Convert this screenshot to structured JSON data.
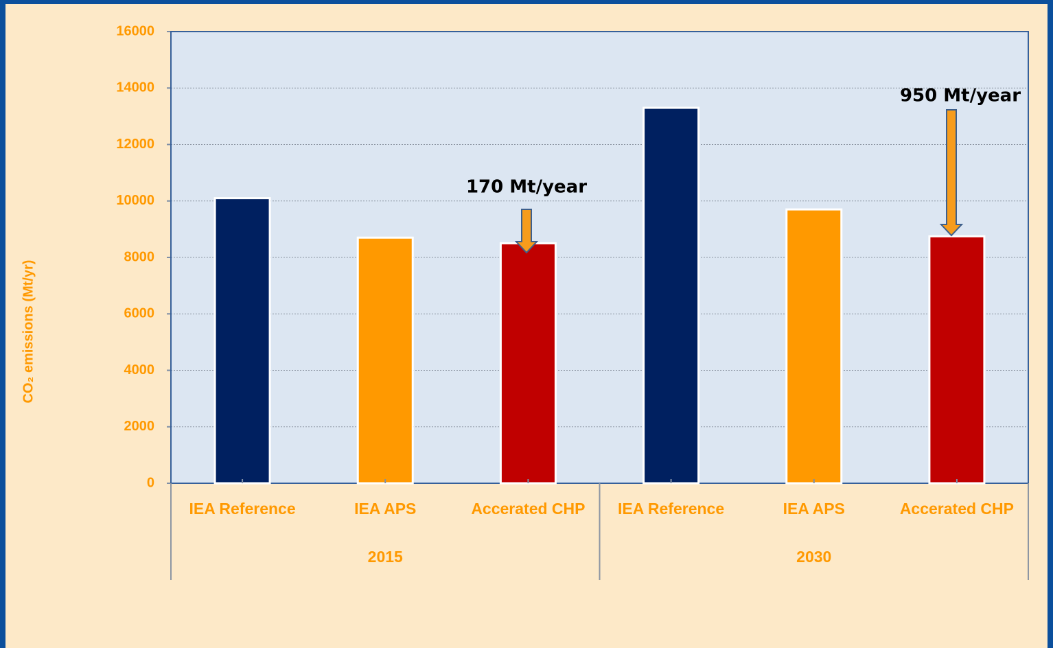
{
  "chart_data": {
    "type": "bar",
    "y_label": "CO₂ emissions (Mt/yr)",
    "categories": [
      "IEA Reference",
      "IEA APS",
      "Accerated CHP",
      "IEA Reference",
      "IEA APS",
      "Accerated CHP"
    ],
    "groups": [
      "2015",
      "2030"
    ],
    "values": [
      10100,
      8700,
      8500,
      13300,
      9700,
      8750
    ],
    "colors": [
      "#002060",
      "#ff9900",
      "#c00000",
      "#002060",
      "#ff9900",
      "#c00000"
    ],
    "ylim": [
      0,
      16000
    ],
    "yticks": [
      0,
      2000,
      4000,
      6000,
      8000,
      10000,
      12000,
      14000,
      16000
    ],
    "grid": true,
    "annotations": [
      "170 Mt/year",
      "950 Mt/year"
    ]
  }
}
